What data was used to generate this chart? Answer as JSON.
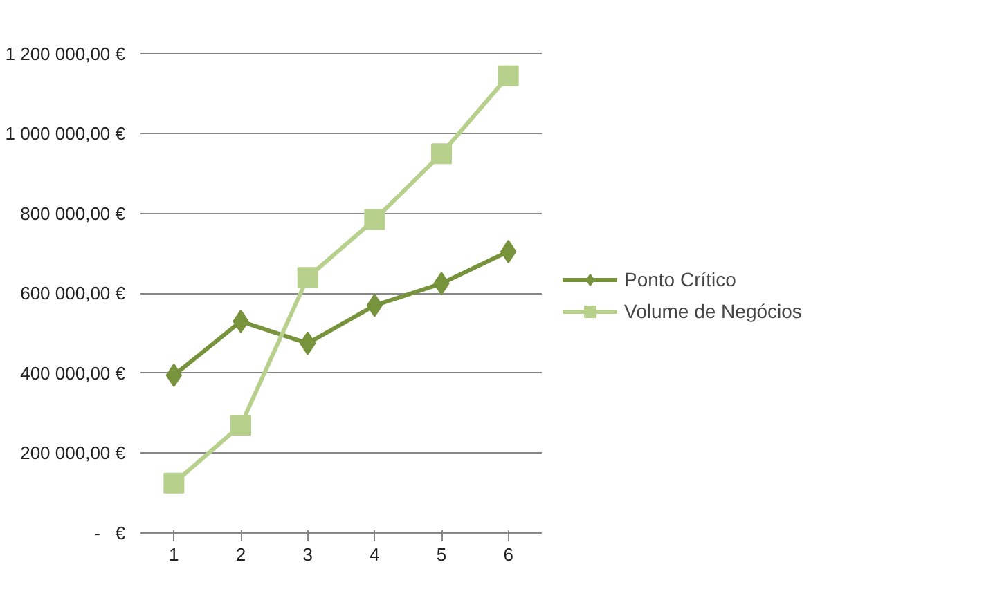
{
  "chart_data": {
    "type": "line",
    "categories": [
      "1",
      "2",
      "3",
      "4",
      "5",
      "6"
    ],
    "series": [
      {
        "name": "Ponto Crítico",
        "color": "#77933c",
        "marker": "diamond",
        "values": [
          395000,
          530000,
          475000,
          570000,
          625000,
          705000
        ]
      },
      {
        "name": "Volume de Negócios",
        "color": "#b7d08c",
        "marker": "square",
        "values": [
          125000,
          270000,
          640000,
          785000,
          950000,
          1145000
        ]
      }
    ],
    "ylim": [
      0,
      1200000
    ],
    "yticks": [
      {
        "value": 0,
        "label": "-   €"
      },
      {
        "value": 200000,
        "label": "200 000,00 €"
      },
      {
        "value": 400000,
        "label": "400 000,00 €"
      },
      {
        "value": 600000,
        "label": "600 000,00 €"
      },
      {
        "value": 800000,
        "label": "800 000,00 €"
      },
      {
        "value": 1000000,
        "label": "1 000 000,00 €"
      },
      {
        "value": 1200000,
        "label": "1 200 000,00 €"
      }
    ],
    "grid": "y",
    "legend": "right"
  }
}
